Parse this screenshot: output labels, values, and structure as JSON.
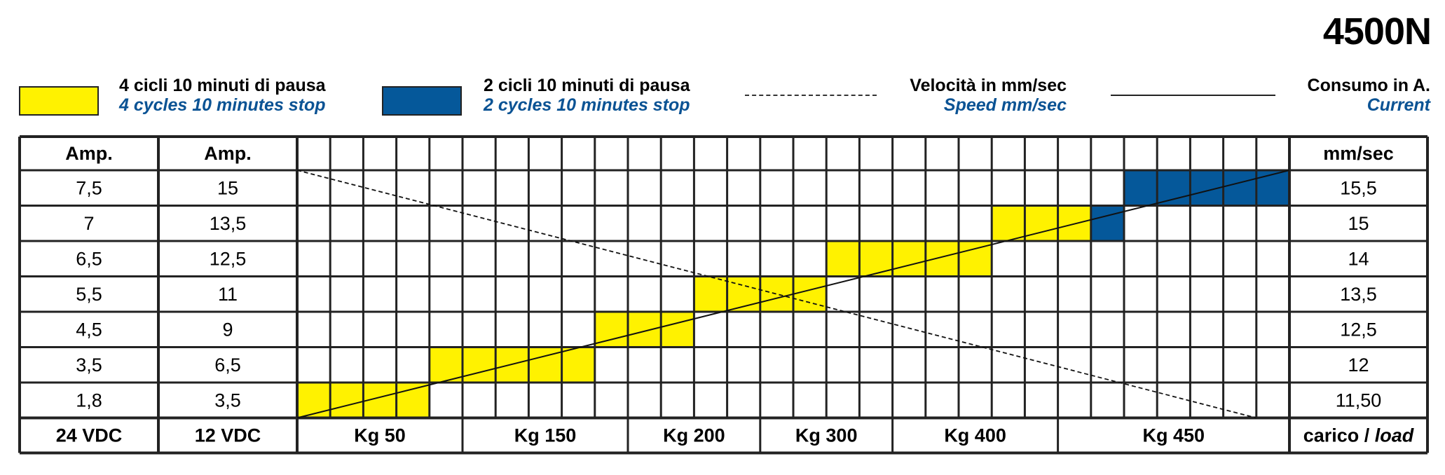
{
  "model": "4500N",
  "legend": [
    {
      "it": "4 cicli 10 minuti di pausa",
      "en": "4 cycles 10 minutes stop",
      "color": "#fff200"
    },
    {
      "it": "2 cicli 10 minuti di pausa",
      "en": "2 cycles 10 minutes stop",
      "color": "#05589a"
    },
    {
      "it": "Velocità in mm/sec",
      "en": "Speed mm/sec",
      "line": "dashed"
    },
    {
      "it": "Consumo in A.",
      "en": "Current",
      "line": "solid"
    }
  ],
  "colors": {
    "grid": "#222222",
    "english_text": "#0b5394",
    "yellow": "#fff200",
    "blue": "#05589a"
  },
  "chart_data": {
    "type": "table",
    "headers": {
      "amp24": "Amp.",
      "amp12": "Amp.",
      "speed": "mm/sec"
    },
    "rows": [
      {
        "amp24": "7,5",
        "amp12": "15",
        "speed": "15,5"
      },
      {
        "amp24": "7",
        "amp12": "13,5",
        "speed": "15"
      },
      {
        "amp24": "6,5",
        "amp12": "12,5",
        "speed": "14"
      },
      {
        "amp24": "5,5",
        "amp12": "11",
        "speed": "13,5"
      },
      {
        "amp24": "4,5",
        "amp12": "9",
        "speed": "12,5"
      },
      {
        "amp24": "3,5",
        "amp12": "6,5",
        "speed": "12"
      },
      {
        "amp24": "1,8",
        "amp12": "3,5",
        "speed": "11,50"
      }
    ],
    "footer": {
      "amp24": "24 VDC",
      "amp12": "12 VDC",
      "load_it": "carico / ",
      "load_en": "load"
    },
    "load_labels": [
      {
        "label": "Kg 50",
        "start_col": 0,
        "end_col": 5
      },
      {
        "label": "Kg 150",
        "start_col": 5,
        "end_col": 10
      },
      {
        "label": "Kg 200",
        "start_col": 10,
        "end_col": 14
      },
      {
        "label": "Kg 300",
        "start_col": 14,
        "end_col": 18
      },
      {
        "label": "Kg 400",
        "start_col": 18,
        "end_col": 23
      },
      {
        "label": "Kg 450",
        "start_col": 23,
        "end_col": 30
      }
    ],
    "grid_columns": 30,
    "filled_cells": [
      {
        "row": 6,
        "from_col": 0,
        "to_col": 3,
        "cycle": "4 cycles"
      },
      {
        "row": 5,
        "from_col": 4,
        "to_col": 8,
        "cycle": "4 cycles"
      },
      {
        "row": 4,
        "from_col": 9,
        "to_col": 11,
        "cycle": "4 cycles"
      },
      {
        "row": 3,
        "from_col": 12,
        "to_col": 15,
        "cycle": "4 cycles"
      },
      {
        "row": 2,
        "from_col": 16,
        "to_col": 20,
        "cycle": "4 cycles"
      },
      {
        "row": 1,
        "from_col": 21,
        "to_col": 23,
        "cycle": "4 cycles"
      },
      {
        "row": 1,
        "from_col": 24,
        "to_col": 24,
        "cycle": "2 cycles"
      },
      {
        "row": 0,
        "from_col": 25,
        "to_col": 29,
        "cycle": "2 cycles"
      }
    ],
    "current_line": {
      "style": "solid",
      "from": {
        "row": 6.5,
        "col": 0
      },
      "to": {
        "row": -0.5,
        "col": 30
      }
    },
    "speed_line": {
      "style": "dashed",
      "from": {
        "row": -0.5,
        "col": 0
      },
      "to": {
        "row": 6.5,
        "col": 29
      }
    }
  }
}
